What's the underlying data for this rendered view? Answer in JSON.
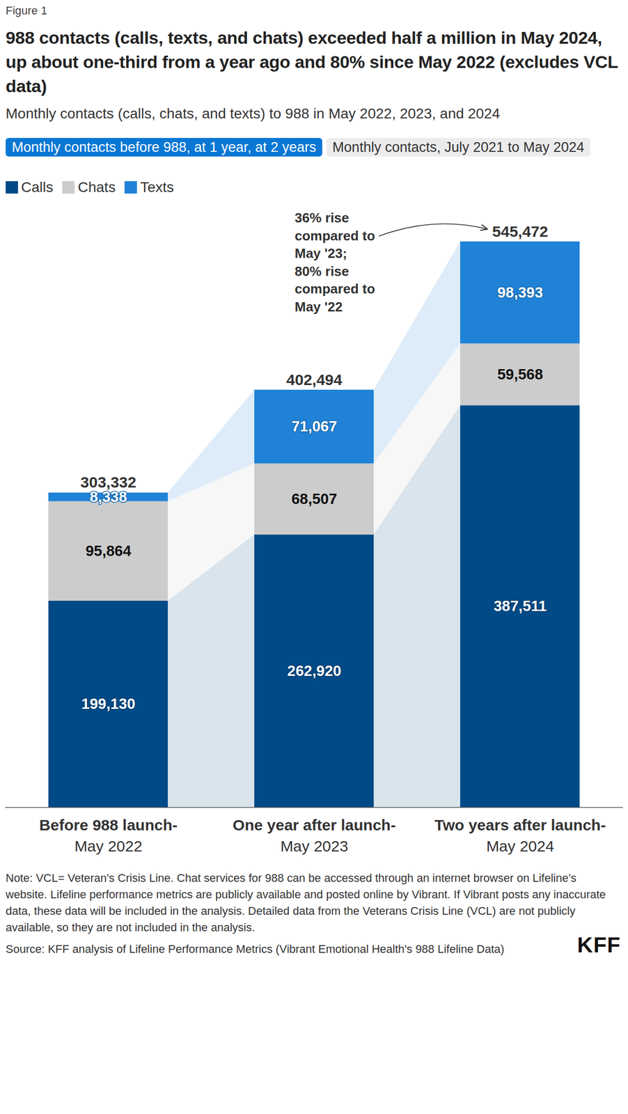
{
  "chart_data": {
    "type": "bar",
    "figure_label": "Figure 1",
    "title": "988 contacts (calls, texts, and chats) exceeded half a million in May 2024, up about one-third from a year ago and 80% since May 2022 (excludes VCL data)",
    "subtitle": "Monthly contacts (calls, chats, and texts) to 988 in May 2022, 2023, and 2024",
    "tabs": [
      "Monthly contacts before 988, at 1 year, at 2 years",
      "Monthly contacts, July 2021 to May 2024"
    ],
    "categories": [
      "Before 988 launch-\nMay 2022",
      "One year after launch-\nMay 2023",
      "Two years after launch-\nMay 2024"
    ],
    "series": [
      {
        "name": "Calls",
        "color": "#004a87",
        "values": [
          199130,
          262920,
          387511
        ],
        "value_labels": [
          "199,130",
          "262,920",
          "387,511"
        ]
      },
      {
        "name": "Chats",
        "color": "#cccccc",
        "values": [
          95864,
          68507,
          59568
        ],
        "value_labels": [
          "95,864",
          "68,507",
          "59,568"
        ]
      },
      {
        "name": "Texts",
        "color": "#1f82d6",
        "values": [
          8338,
          71067,
          98393
        ],
        "value_labels": [
          "8,338",
          "71,067",
          "98,393"
        ]
      }
    ],
    "totals": [
      303332,
      402494,
      545472
    ],
    "total_labels": [
      "303,332",
      "402,494",
      "545,472"
    ],
    "annotation": "36% rise\ncompared to\nMay '23;\n80% rise\ncompared to\nMay '22",
    "ylim": [
      0,
      545472
    ],
    "stacked": true,
    "data_labels": true,
    "tick_labels": "x",
    "legend": "top-left",
    "note": "Note: VCL= Veteran's Crisis Line. Chat services for 988 can be accessed through an internet browser on Lifeline’s website. Lifeline performance metrics are publicly available and posted online by Vibrant. If Vibrant posts any inaccurate data, these data will be included in the analysis. Detailed data from the Veterans Crisis Line (VCL) are not publicly available, so they are not included in the analysis.",
    "source": "Source: KFF analysis of Lifeline Performance Metrics (Vibrant Emotional Health's 988 Lifeline Data)",
    "logo": "KFF"
  }
}
